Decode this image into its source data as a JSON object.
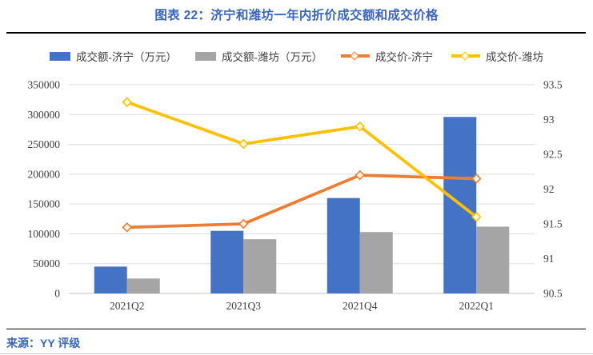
{
  "source": "来源：YY 评级",
  "colors": {
    "title_blue": "#3A66B9",
    "bar_jining": "#4472C4",
    "bar_weifang": "#A5A5A5",
    "line_jining": "#ED7D31",
    "line_weifang": "#FFC000",
    "gridline": "#DCDCDC",
    "axis_line": "#C0C0C0",
    "tick_text": "#404040",
    "marker_fill": "#FFF8E8"
  },
  "chart_data": {
    "type": "combo-bar-line",
    "title": "图表 22：济宁和潍坊一年内折价成交额和成交价格",
    "categories": [
      "2021Q2",
      "2021Q3",
      "2021Q4",
      "2022Q1"
    ],
    "series": [
      {
        "name": "成交额-济宁（万元）",
        "type": "bar",
        "axis": "left",
        "color": "#4472C4",
        "values": [
          45000,
          105000,
          160000,
          296000
        ]
      },
      {
        "name": "成交额-潍坊（万元）",
        "type": "bar",
        "axis": "left",
        "color": "#A5A5A5",
        "values": [
          25000,
          91000,
          103000,
          112000
        ]
      },
      {
        "name": "成交价-济宁",
        "type": "line",
        "axis": "right",
        "color": "#ED7D31",
        "values": [
          91.45,
          91.5,
          92.2,
          92.15
        ]
      },
      {
        "name": "成交价-潍坊",
        "type": "line",
        "axis": "right",
        "color": "#FFC000",
        "values": [
          93.25,
          92.65,
          92.9,
          91.6
        ]
      }
    ],
    "left_axis": {
      "min": 0,
      "max": 350000,
      "step": 50000,
      "ticks": [
        "0",
        "50000",
        "100000",
        "150000",
        "200000",
        "250000",
        "300000",
        "350000"
      ]
    },
    "right_axis": {
      "min": 90.5,
      "max": 93.5,
      "step": 0.5,
      "ticks": [
        "90.5",
        "91",
        "91.5",
        "92",
        "92.5",
        "93",
        "93.5"
      ]
    },
    "grid": true,
    "legend_position": "top"
  }
}
